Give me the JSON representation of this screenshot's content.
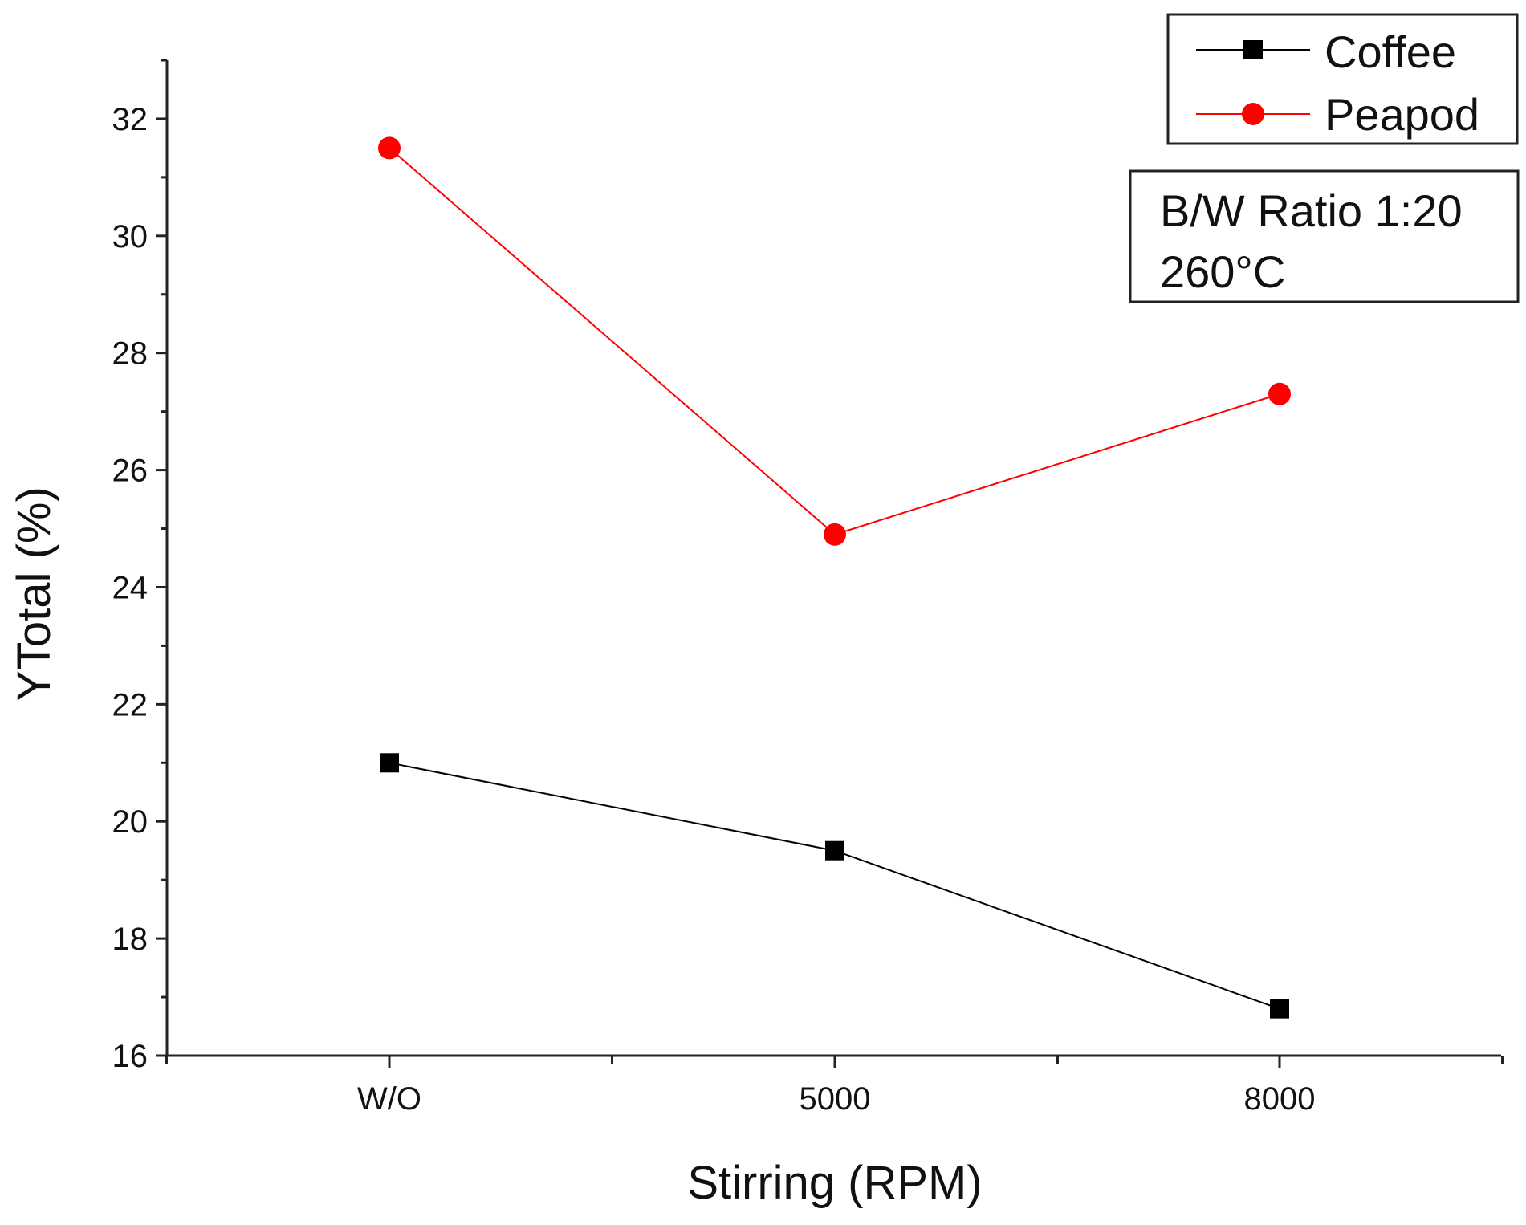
{
  "chart_data": {
    "type": "line",
    "title": "",
    "xlabel": "Stirring (RPM)",
    "ylabel": "YTotal (%)",
    "categories": [
      "W/O",
      "5000",
      "8000"
    ],
    "ylim": [
      16,
      33
    ],
    "yticks": [
      16,
      18,
      20,
      22,
      24,
      26,
      28,
      30,
      32
    ],
    "ytick_labels": [
      "16",
      "18",
      "20",
      "22",
      "24",
      "26",
      "28",
      "30",
      "32"
    ],
    "grid": false,
    "legend_position": "top-right",
    "series": [
      {
        "name": "Coffee",
        "marker": "square",
        "color": "#000000",
        "values": [
          21.0,
          19.5,
          16.8
        ]
      },
      {
        "name": "Peapod",
        "marker": "circle",
        "color": "#ff0000",
        "values": [
          31.5,
          24.9,
          27.3
        ]
      }
    ],
    "annotation": {
      "lines": [
        "B/W Ratio 1:20",
        "260°C"
      ]
    }
  }
}
